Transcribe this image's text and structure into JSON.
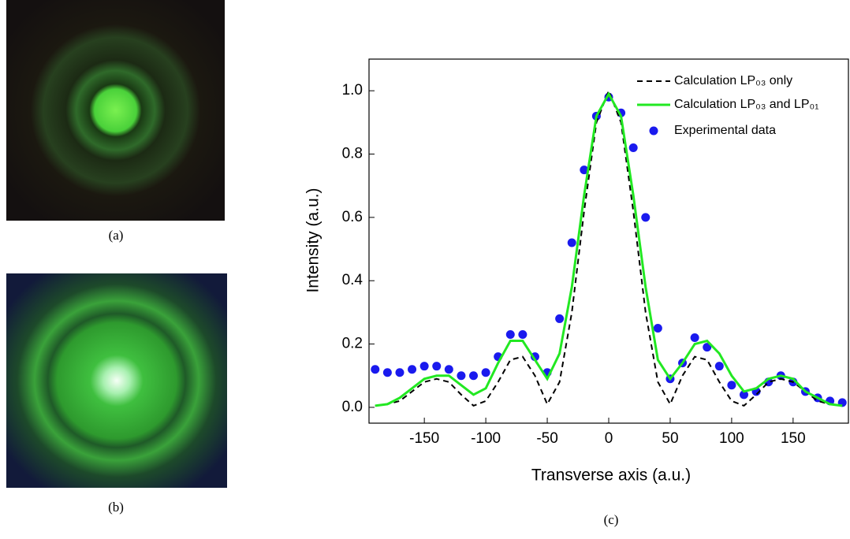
{
  "panels": [
    {
      "caption": "(a)"
    },
    {
      "caption": "(b)"
    }
  ],
  "chart_data": {
    "type": "line",
    "caption": "(c)",
    "x_label": "Transverse axis (a.u.)",
    "y_label": "Intensity (a.u.)",
    "xlim": [
      -195,
      195
    ],
    "ylim": [
      -0.05,
      1.1
    ],
    "xticks": [
      -150,
      -100,
      -50,
      0,
      50,
      100,
      150
    ],
    "yticks": [
      {
        "value": 0,
        "label": "0.0"
      },
      0.2,
      0.4,
      0.6,
      0.8,
      {
        "value": 1,
        "label": "1.0"
      }
    ],
    "legend": "top-right",
    "x": [
      -190,
      -180,
      -170,
      -160,
      -150,
      -140,
      -130,
      -120,
      -110,
      -100,
      -90,
      -80,
      -70,
      -60,
      -50,
      -40,
      -30,
      -20,
      -10,
      0,
      10,
      20,
      30,
      40,
      50,
      60,
      70,
      80,
      90,
      100,
      110,
      120,
      130,
      140,
      150,
      160,
      170,
      180,
      190
    ],
    "series": [
      {
        "name": "Calculation LP₀₃ only",
        "color": "#000000",
        "style": "dashed",
        "values": [
          0.005,
          0.01,
          0.02,
          0.05,
          0.08,
          0.09,
          0.08,
          0.04,
          0.005,
          0.02,
          0.08,
          0.15,
          0.16,
          0.1,
          0.01,
          0.08,
          0.3,
          0.62,
          0.9,
          1.0,
          0.9,
          0.62,
          0.3,
          0.08,
          0.01,
          0.1,
          0.16,
          0.15,
          0.08,
          0.02,
          0.005,
          0.04,
          0.08,
          0.09,
          0.08,
          0.05,
          0.02,
          0.01,
          0.005
        ]
      },
      {
        "name": "Calculation LP₀₃ and LP₀₁",
        "color": "#22e822",
        "style": "solid",
        "values": [
          0.005,
          0.01,
          0.03,
          0.06,
          0.09,
          0.1,
          0.1,
          0.07,
          0.04,
          0.06,
          0.14,
          0.21,
          0.21,
          0.15,
          0.09,
          0.17,
          0.38,
          0.67,
          0.92,
          0.99,
          0.92,
          0.67,
          0.38,
          0.15,
          0.09,
          0.14,
          0.2,
          0.21,
          0.17,
          0.1,
          0.05,
          0.06,
          0.09,
          0.1,
          0.09,
          0.05,
          0.03,
          0.01,
          0.005
        ]
      },
      {
        "name": "Experimental data",
        "color": "#1a1aee",
        "style": "markers",
        "values": [
          0.12,
          0.11,
          0.11,
          0.12,
          0.13,
          0.13,
          0.12,
          0.1,
          0.1,
          0.11,
          0.16,
          0.23,
          0.23,
          0.16,
          0.11,
          0.28,
          0.52,
          0.75,
          0.92,
          0.98,
          0.93,
          0.82,
          0.6,
          0.25,
          0.09,
          0.14,
          0.22,
          0.19,
          0.13,
          0.07,
          0.04,
          0.05,
          0.08,
          0.1,
          0.08,
          0.05,
          0.03,
          0.02,
          0.015
        ]
      }
    ]
  }
}
